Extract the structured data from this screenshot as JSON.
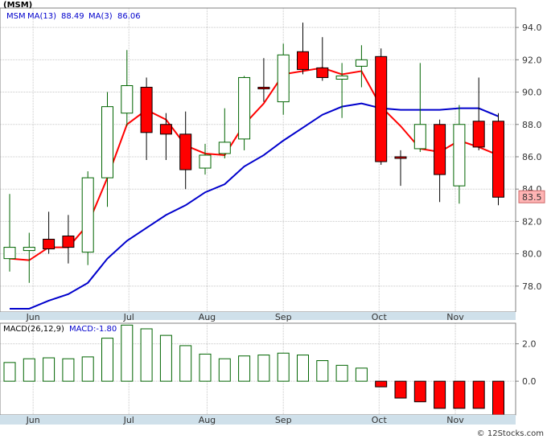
{
  "chart_data": [
    {
      "type": "candlestick",
      "legend": {
        "ticker": "(MSM)",
        "symbol": "MSM",
        "ma13_label": "MA(13)",
        "ma13_value": "88.49",
        "ma3_label": "MA(3)",
        "ma3_value": "86.06"
      },
      "last_price_label": "83.5",
      "last_price": 83.5,
      "ylim": [
        76.4,
        95.2
      ],
      "y_ticks": [
        "94.0",
        "92.0",
        "90.0",
        "88.0",
        "86.0",
        "84.0",
        "82.0",
        "80.0",
        "78.0"
      ],
      "month_labels": [
        "Jun",
        "Jul",
        "Aug",
        "Sep",
        "Oct",
        "Nov"
      ],
      "month_positions": [
        1.2,
        6.1,
        10.1,
        14.0,
        18.9,
        22.8
      ],
      "candles": [
        {
          "i": 0,
          "o": 79.7,
          "h": 83.7,
          "l": 78.9,
          "c": 80.4
        },
        {
          "i": 1,
          "o": 80.2,
          "h": 81.3,
          "l": 78.2,
          "c": 80.4
        },
        {
          "i": 2,
          "o": 80.9,
          "h": 82.6,
          "l": 80.0,
          "c": 80.3
        },
        {
          "i": 3,
          "o": 81.1,
          "h": 82.4,
          "l": 79.4,
          "c": 80.4
        },
        {
          "i": 4,
          "o": 80.1,
          "h": 85.1,
          "l": 79.3,
          "c": 84.7
        },
        {
          "i": 5,
          "o": 84.7,
          "h": 90.0,
          "l": 82.9,
          "c": 89.1
        },
        {
          "i": 6,
          "o": 88.7,
          "h": 92.6,
          "l": 87.9,
          "c": 90.4
        },
        {
          "i": 7,
          "o": 90.3,
          "h": 90.9,
          "l": 85.8,
          "c": 87.5
        },
        {
          "i": 8,
          "o": 88.0,
          "h": 88.7,
          "l": 85.8,
          "c": 87.4
        },
        {
          "i": 9,
          "o": 87.4,
          "h": 88.8,
          "l": 84.0,
          "c": 85.2
        },
        {
          "i": 10,
          "o": 85.3,
          "h": 86.8,
          "l": 84.9,
          "c": 86.1
        },
        {
          "i": 11,
          "o": 86.2,
          "h": 89.0,
          "l": 85.9,
          "c": 86.9
        },
        {
          "i": 12,
          "o": 87.1,
          "h": 91.0,
          "l": 86.4,
          "c": 90.9
        },
        {
          "i": 13,
          "o": 90.3,
          "h": 92.1,
          "l": 89.4,
          "c": 90.2
        },
        {
          "i": 14,
          "o": 89.4,
          "h": 93.0,
          "l": 88.6,
          "c": 92.3
        },
        {
          "i": 15,
          "o": 92.5,
          "h": 94.3,
          "l": 91.1,
          "c": 91.4
        },
        {
          "i": 16,
          "o": 91.5,
          "h": 93.4,
          "l": 90.7,
          "c": 90.9
        },
        {
          "i": 17,
          "o": 90.8,
          "h": 91.8,
          "l": 88.4,
          "c": 91.0
        },
        {
          "i": 18,
          "o": 91.6,
          "h": 92.9,
          "l": 90.3,
          "c": 92.0
        },
        {
          "i": 19,
          "o": 92.2,
          "h": 92.7,
          "l": 85.5,
          "c": 85.7
        },
        {
          "i": 20,
          "o": 86.0,
          "h": 86.4,
          "l": 84.2,
          "c": 85.9
        },
        {
          "i": 21,
          "o": 86.5,
          "h": 91.8,
          "l": 86.3,
          "c": 88.0
        },
        {
          "i": 22,
          "o": 88.0,
          "h": 88.3,
          "l": 83.2,
          "c": 84.9
        },
        {
          "i": 23,
          "o": 84.2,
          "h": 89.2,
          "l": 83.1,
          "c": 88.0
        },
        {
          "i": 24,
          "o": 88.2,
          "h": 90.9,
          "l": 86.4,
          "c": 86.6
        },
        {
          "i": 25,
          "o": 88.2,
          "h": 88.7,
          "l": 83.0,
          "c": 83.5
        }
      ],
      "ma3": [
        {
          "i": 0,
          "v": 79.7
        },
        {
          "i": 1,
          "v": 79.6
        },
        {
          "i": 2,
          "v": 80.4
        },
        {
          "i": 3,
          "v": 80.4
        },
        {
          "i": 4,
          "v": 81.8
        },
        {
          "i": 5,
          "v": 84.7
        },
        {
          "i": 6,
          "v": 88.0
        },
        {
          "i": 7,
          "v": 88.9
        },
        {
          "i": 8,
          "v": 88.3
        },
        {
          "i": 9,
          "v": 86.7
        },
        {
          "i": 10,
          "v": 86.2
        },
        {
          "i": 11,
          "v": 86.1
        },
        {
          "i": 12,
          "v": 88.0
        },
        {
          "i": 13,
          "v": 89.3
        },
        {
          "i": 14,
          "v": 91.1
        },
        {
          "i": 15,
          "v": 91.3
        },
        {
          "i": 16,
          "v": 91.5
        },
        {
          "i": 17,
          "v": 91.1
        },
        {
          "i": 18,
          "v": 91.3
        },
        {
          "i": 19,
          "v": 89.1
        },
        {
          "i": 20,
          "v": 87.9
        },
        {
          "i": 21,
          "v": 86.5
        },
        {
          "i": 22,
          "v": 86.3
        },
        {
          "i": 23,
          "v": 87.0
        },
        {
          "i": 24,
          "v": 86.6
        },
        {
          "i": 25,
          "v": 86.1
        }
      ],
      "ma13": [
        {
          "i": 0,
          "v": 76.6
        },
        {
          "i": 1,
          "v": 76.6
        },
        {
          "i": 2,
          "v": 77.1
        },
        {
          "i": 3,
          "v": 77.5
        },
        {
          "i": 4,
          "v": 78.2
        },
        {
          "i": 5,
          "v": 79.7
        },
        {
          "i": 6,
          "v": 80.8
        },
        {
          "i": 7,
          "v": 81.6
        },
        {
          "i": 8,
          "v": 82.4
        },
        {
          "i": 9,
          "v": 83.0
        },
        {
          "i": 10,
          "v": 83.8
        },
        {
          "i": 11,
          "v": 84.3
        },
        {
          "i": 12,
          "v": 85.4
        },
        {
          "i": 13,
          "v": 86.1
        },
        {
          "i": 14,
          "v": 87.0
        },
        {
          "i": 15,
          "v": 87.8
        },
        {
          "i": 16,
          "v": 88.6
        },
        {
          "i": 17,
          "v": 89.1
        },
        {
          "i": 18,
          "v": 89.3
        },
        {
          "i": 19,
          "v": 89.0
        },
        {
          "i": 20,
          "v": 88.9
        },
        {
          "i": 21,
          "v": 88.9
        },
        {
          "i": 22,
          "v": 88.9
        },
        {
          "i": 23,
          "v": 89.0
        },
        {
          "i": 24,
          "v": 89.0
        },
        {
          "i": 25,
          "v": 88.5
        }
      ],
      "colors": {
        "up": "#ffffff",
        "up_stroke": "#006400",
        "down": "#ff0000",
        "down_stroke": "#000000",
        "ma3": "#ff0000",
        "ma13": "#0000cc",
        "price_tag": "#ffb4b4"
      }
    },
    {
      "type": "bar",
      "legend": {
        "label": "MACD(26,12,9)",
        "value": "MACD:-1.80"
      },
      "ylim": [
        -1.8,
        3.1
      ],
      "y_ticks": [
        "2.0",
        "0.0"
      ],
      "month_labels": [
        "Jun",
        "Jul",
        "Aug",
        "Sep",
        "Oct",
        "Nov"
      ],
      "month_positions": [
        1.2,
        6.1,
        10.1,
        14.0,
        18.9,
        22.8
      ],
      "values": [
        1.0,
        1.2,
        1.25,
        1.2,
        1.3,
        2.3,
        3.0,
        2.8,
        2.45,
        1.9,
        1.45,
        1.2,
        1.35,
        1.4,
        1.5,
        1.4,
        1.1,
        0.85,
        0.7,
        -0.3,
        -0.9,
        -1.1,
        -1.45,
        -1.45,
        -1.45,
        -1.8
      ],
      "colors": {
        "positive": "#006400",
        "negative": "#ff0000"
      }
    }
  ],
  "watermark": "© 12Stocks.com"
}
